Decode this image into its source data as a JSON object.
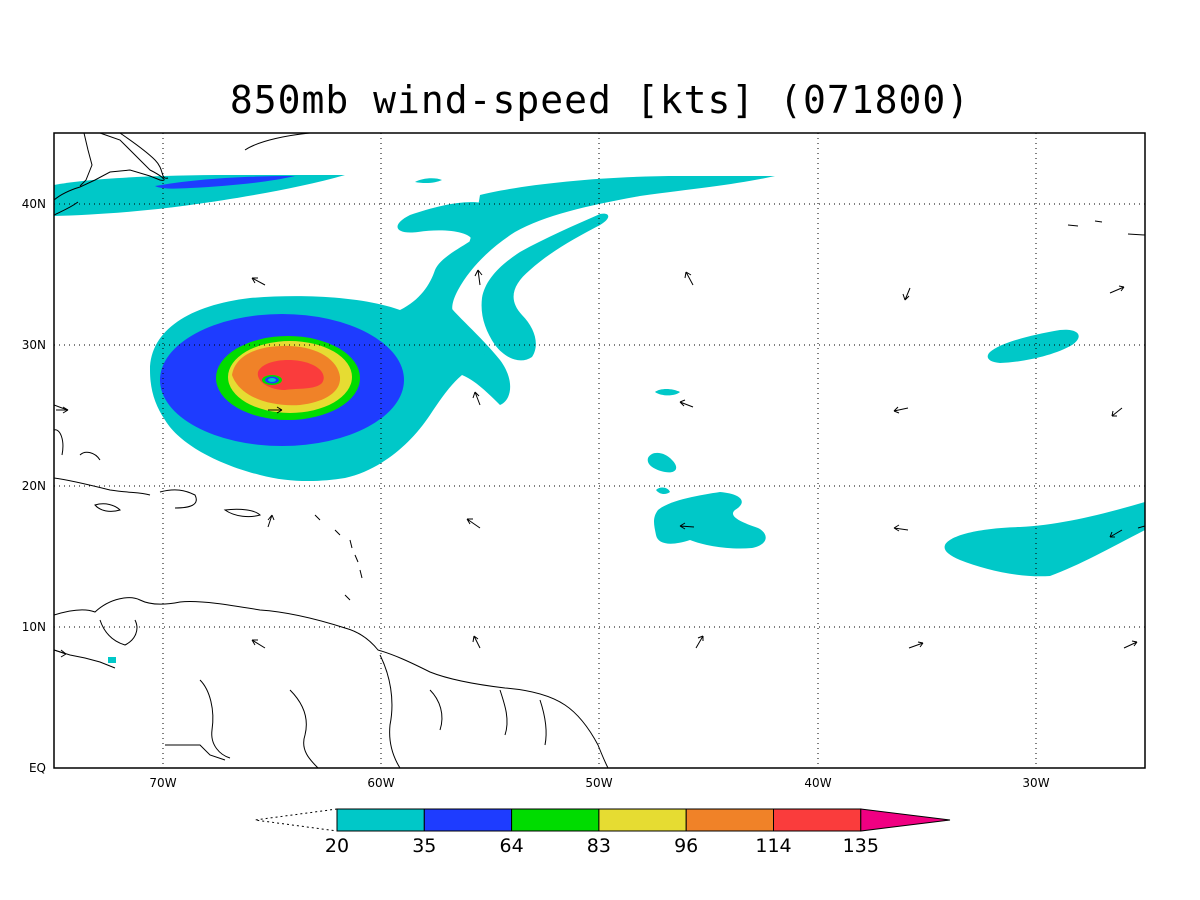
{
  "title": "850mb wind-speed [kts] (071800)",
  "map": {
    "lon_range": [
      -75,
      -25
    ],
    "lat_range": [
      0,
      45
    ],
    "lon_ticks": [
      "70W",
      "60W",
      "50W",
      "40W",
      "30W"
    ],
    "lat_ticks": [
      "EQ",
      "10N",
      "20N",
      "30N",
      "40N"
    ],
    "grid": true,
    "grid_style": "dotted"
  },
  "colorbar": {
    "levels": [
      "20",
      "35",
      "64",
      "83",
      "96",
      "114",
      "135"
    ],
    "colors": [
      "#00c8c8",
      "#1e3cff",
      "#00dc00",
      "#e6dc32",
      "#f08228",
      "#fa3c3c",
      "#f00082"
    ]
  },
  "colors": {
    "coast": "#000000",
    "grid": "#000000",
    "background": "#ffffff"
  }
}
